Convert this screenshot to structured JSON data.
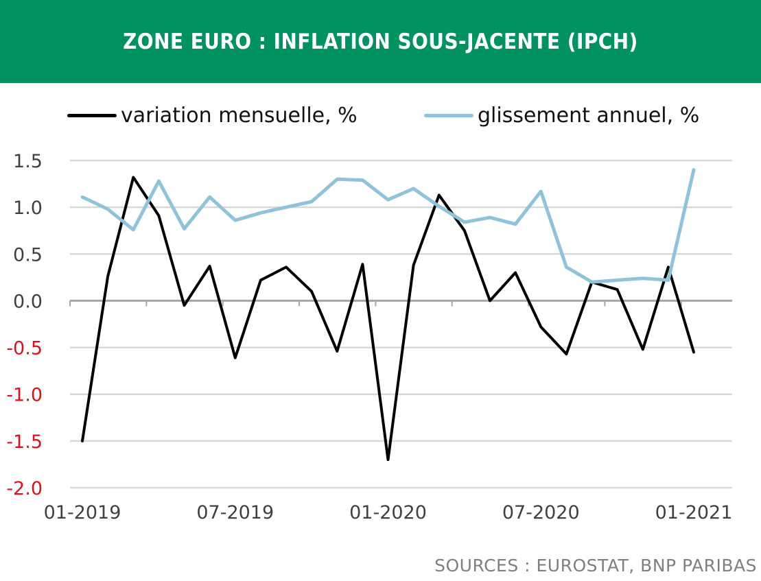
{
  "header": {
    "title": "ZONE EURO : INFLATION SOUS-JACENTE (IPCH)"
  },
  "legend": {
    "items": [
      {
        "label": "variation mensuelle, %",
        "color": "#000000"
      },
      {
        "label": "glissement annuel, %",
        "color": "#8fc3dc"
      }
    ]
  },
  "source": "SOURCES : EUROSTAT, BNP PARIBAS",
  "colors": {
    "header_bg": "#009260",
    "positive_tick": "#404040",
    "negative_tick": "#e0101a",
    "grid": "#d9d9d9",
    "zero_axis": "#a6a6a6"
  },
  "chart_data": {
    "type": "line",
    "title": "ZONE EURO : INFLATION SOUS-JACENTE (IPCH)",
    "x": [
      "01-2019",
      "02-2019",
      "03-2019",
      "04-2019",
      "05-2019",
      "06-2019",
      "07-2019",
      "08-2019",
      "09-2019",
      "10-2019",
      "11-2019",
      "12-2019",
      "01-2020",
      "02-2020",
      "03-2020",
      "04-2020",
      "05-2020",
      "06-2020",
      "07-2020",
      "08-2020",
      "09-2020",
      "10-2020",
      "11-2020",
      "12-2020",
      "01-2021"
    ],
    "x_tick_labels": [
      "01-2019",
      "07-2019",
      "01-2020",
      "07-2020",
      "01-2021"
    ],
    "x_tick_indices": [
      0,
      6,
      12,
      18,
      24
    ],
    "y_ticks": [
      "1.5",
      "1.0",
      "0.5",
      "0.0",
      "-0.5",
      "-1.0",
      "-1.5",
      "-2.0"
    ],
    "y_tick_values": [
      1.5,
      1.0,
      0.5,
      0.0,
      -0.5,
      -1.0,
      -1.5,
      -2.0
    ],
    "ylim": [
      -2.0,
      1.5
    ],
    "grid": true,
    "legend_position": "top",
    "series": [
      {
        "name": "variation mensuelle, %",
        "color": "#000000",
        "values": [
          -1.5,
          0.26,
          1.32,
          0.91,
          -0.05,
          0.37,
          -0.61,
          0.22,
          0.36,
          0.1,
          -0.54,
          0.39,
          -1.7,
          0.38,
          1.13,
          0.75,
          0.0,
          0.3,
          -0.28,
          -0.57,
          0.2,
          0.12,
          -0.52,
          0.36,
          -0.55
        ]
      },
      {
        "name": "glissement annuel, %",
        "color": "#8fc3dc",
        "values": [
          1.11,
          0.98,
          0.76,
          1.28,
          0.77,
          1.11,
          0.86,
          0.94,
          1.0,
          1.06,
          1.3,
          1.29,
          1.08,
          1.2,
          1.01,
          0.84,
          0.89,
          0.82,
          1.17,
          0.36,
          0.2,
          0.22,
          0.24,
          0.22,
          1.4
        ]
      }
    ]
  }
}
